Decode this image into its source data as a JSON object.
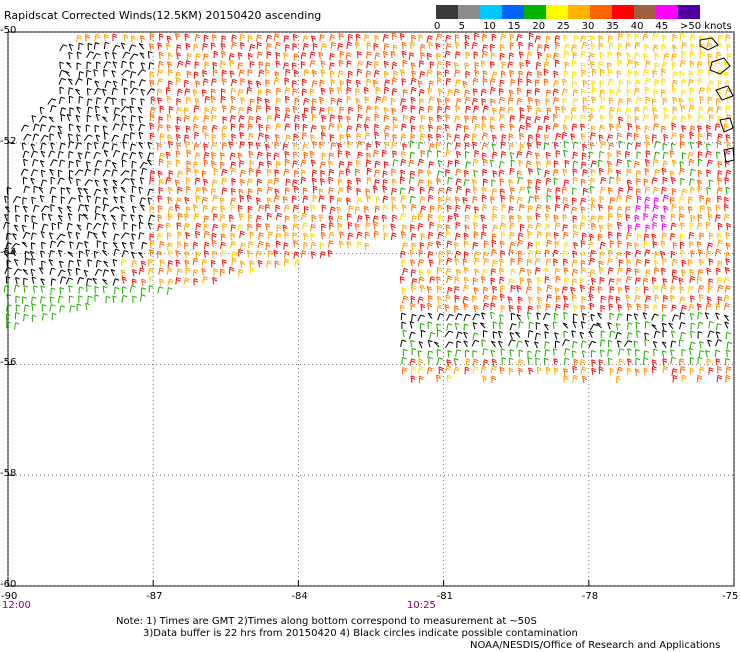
{
  "title": "Rapidscat Corrected Winds(12.5KM) 20150420 ascending",
  "colorbar": {
    "labels": [
      "0",
      "5",
      "10",
      "15",
      "20",
      "25",
      "30",
      "35",
      "40",
      "45",
      ">50 knots"
    ],
    "colors": [
      "#3a3a3a",
      "#8c8c8c",
      "#00c8ff",
      "#0064ff",
      "#00b400",
      "#ffff00",
      "#ffb400",
      "#ff6400",
      "#ff0000",
      "#a06040",
      "#ff00ff",
      "#5000a0"
    ]
  },
  "map_data": {
    "lon_range": [
      -90,
      -75
    ],
    "lat_range": [
      -60,
      -50
    ],
    "lat_ticks": [
      "-50",
      "-52",
      "-54",
      "-56",
      "-58",
      "-60"
    ],
    "lon_ticks": [
      "-90",
      "-87",
      "-84",
      "-81",
      "-78",
      "-75"
    ],
    "time_labels": [
      "12:00",
      "10:25"
    ],
    "gridlines": true,
    "wind_colors": {
      "calm": "#000000",
      "green": "#22aa00",
      "yellow": "#ffdd00",
      "orange": "#ffa500",
      "darkorange": "#ff6600",
      "red": "#ee1111",
      "magenta": "#ee00ee"
    }
  },
  "notes": {
    "line1": "Note: 1) Times are GMT 2)Times along bottom correspond to measurement at ~50S",
    "line2": "3)Data buffer is 22 hrs from 20150420 4) Black circles indicate possible contamination",
    "line3": "NOAA/NESDIS/Office of Research and Applications"
  }
}
